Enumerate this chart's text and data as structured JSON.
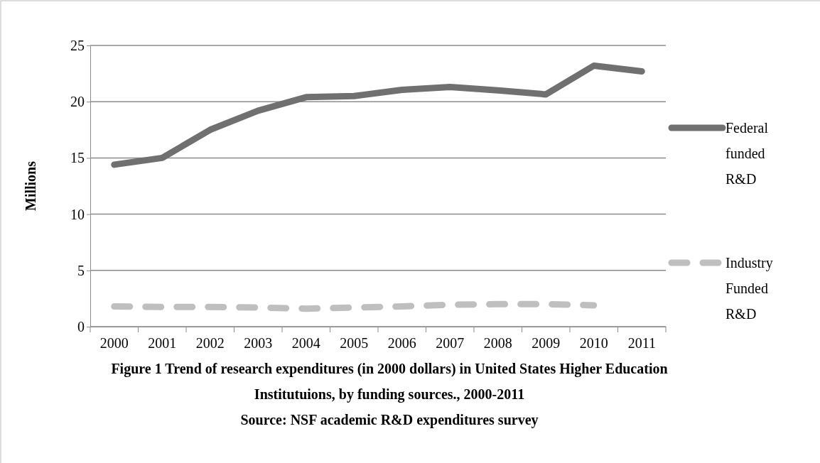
{
  "chart_data": {
    "type": "line",
    "title": "Figure 1 Trend of research expenditures (in 2000 dollars) in United States Higher Education Institutuions, by funding sources., 2000-2011",
    "ylabel": "Millions",
    "annotations": [
      "Source: NSF academic R&D expenditures survey"
    ],
    "categories": [
      "2000",
      "2001",
      "2002",
      "2003",
      "2004",
      "2005",
      "2006",
      "2007",
      "2008",
      "2009",
      "2010",
      "2011"
    ],
    "series": [
      {
        "name": "Federal funded R&D",
        "color": "#707070",
        "line_style": "solid",
        "values": [
          14.4,
          15.0,
          17.5,
          19.2,
          20.4,
          20.5,
          21.05,
          21.3,
          21.0,
          20.65,
          23.2,
          22.7
        ]
      },
      {
        "name": "Industry Funded R&D",
        "color": "#bfbfbf",
        "line_style": "dashed",
        "values": [
          1.8,
          1.75,
          1.75,
          1.7,
          1.6,
          1.7,
          1.8,
          1.95,
          2.0,
          2.0,
          1.9,
          null
        ]
      }
    ],
    "ylim": [
      0,
      25
    ],
    "yticks": [
      0,
      5,
      10,
      15,
      20,
      25
    ],
    "grid": "y",
    "legend": "right",
    "marker": "none"
  }
}
